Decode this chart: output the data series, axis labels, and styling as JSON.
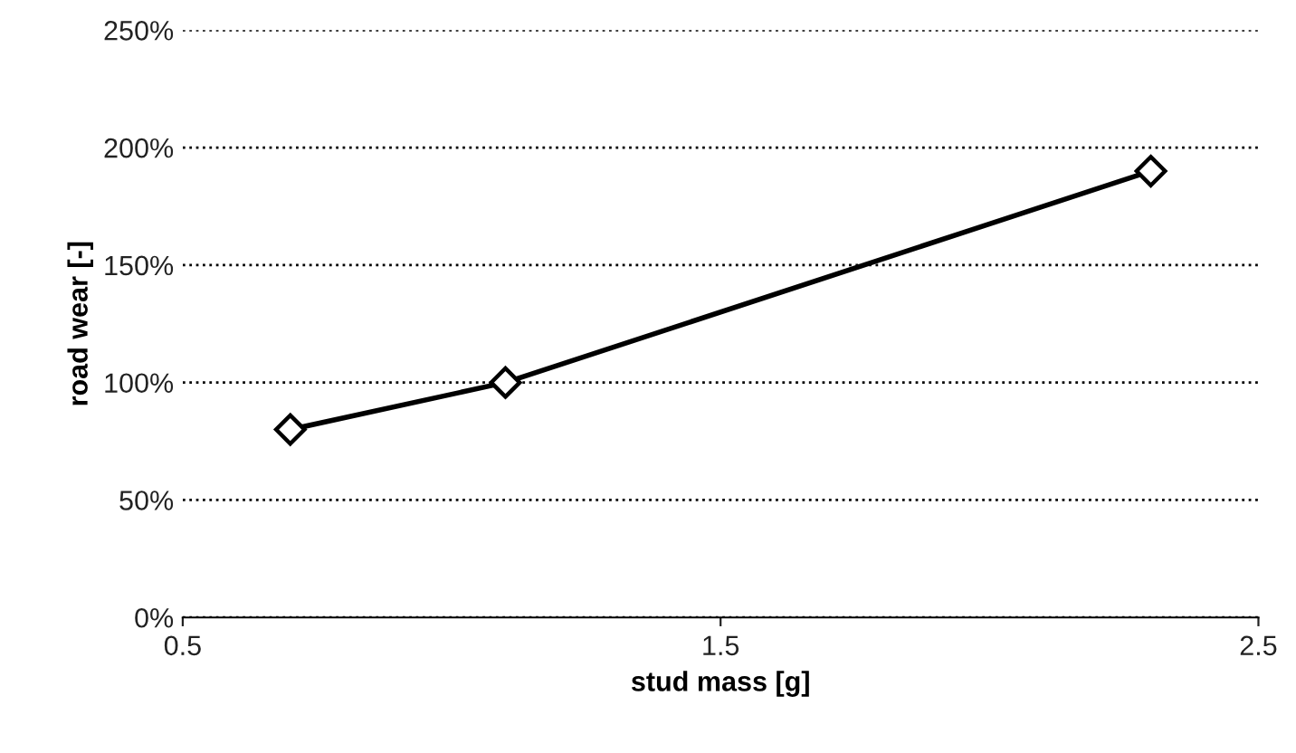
{
  "chart_data": {
    "type": "line",
    "xlabel": "stud mass [g]",
    "ylabel": "road wear [-]",
    "series": [
      {
        "x": [
          0.7,
          1.1,
          2.3
        ],
        "values": [
          80,
          100,
          190
        ],
        "color": "#000000"
      }
    ],
    "xlim": [
      0.5,
      2.5
    ],
    "xticks": [
      0.5,
      1.5,
      2.5
    ],
    "ylim": [
      0,
      250
    ],
    "yticks": [
      {
        "value": 0,
        "label": "0%"
      },
      {
        "value": 50,
        "label": "50%"
      },
      {
        "value": 100,
        "label": "100%"
      },
      {
        "value": 150,
        "label": "150%"
      },
      {
        "value": 200,
        "label": "200%"
      },
      {
        "value": 250,
        "label": "250%"
      }
    ],
    "grid": "y",
    "marker": "diamond",
    "line_style": "solid"
  }
}
